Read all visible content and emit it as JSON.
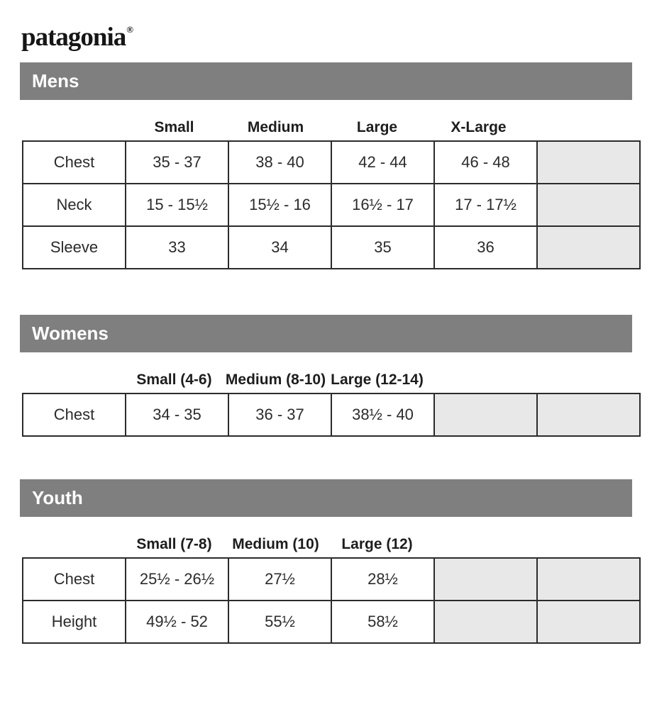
{
  "logo": {
    "text": "patagonia",
    "registered": "®"
  },
  "colors": {
    "bar_gray": "#7f7f7f",
    "empty_cell_gray": "#e8e8e8",
    "border": "#2b2b2b",
    "text": "#2b2b2b"
  },
  "sections": {
    "mens": {
      "title": "Mens",
      "col_headers": [
        "Small",
        "Medium",
        "Large",
        "X-Large"
      ],
      "rows": [
        {
          "label": "Chest",
          "values": [
            "35 - 37",
            "38 - 40",
            "42 - 44",
            "46 - 48"
          ]
        },
        {
          "label": "Neck",
          "values": [
            "15 - 15½",
            "15½ - 16",
            "16½ - 17",
            "17 - 17½"
          ]
        },
        {
          "label": "Sleeve",
          "values": [
            "33",
            "34",
            "35",
            "36"
          ]
        }
      ]
    },
    "womens": {
      "title": "Womens",
      "col_headers": [
        "Small (4-6)",
        "Medium (8-10)",
        "Large (12-14)"
      ],
      "rows": [
        {
          "label": "Chest",
          "values": [
            "34 - 35",
            "36 - 37",
            "38½ - 40"
          ]
        }
      ]
    },
    "youth": {
      "title": "Youth",
      "col_headers": [
        "Small (7-8)",
        "Medium (10)",
        "Large (12)"
      ],
      "rows": [
        {
          "label": "Chest",
          "values": [
            "25½ - 26½",
            "27½",
            "28½"
          ]
        },
        {
          "label": "Height",
          "values": [
            "49½ - 52",
            "55½",
            "58½"
          ]
        }
      ]
    }
  }
}
